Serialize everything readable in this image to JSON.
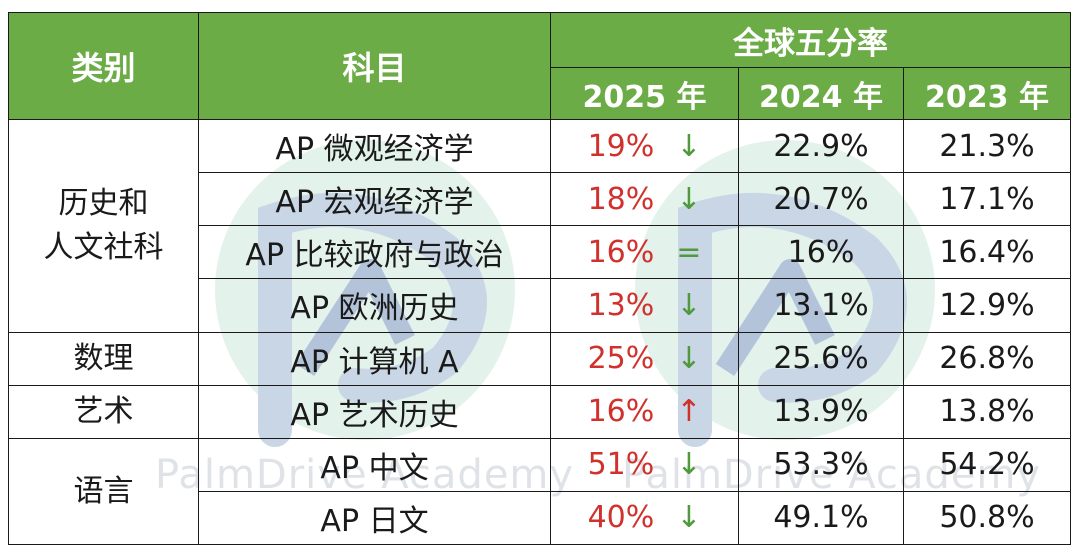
{
  "header": {
    "category": "类别",
    "subject": "科目",
    "group": "全球五分率",
    "years": [
      "2025 年",
      "2024 年",
      "2023 年"
    ]
  },
  "categories": [
    {
      "label_lines": [
        "历史和",
        "人文社科"
      ]
    },
    {
      "label_lines": [
        "数理"
      ]
    },
    {
      "label_lines": [
        "艺术"
      ]
    },
    {
      "label_lines": [
        "语言"
      ]
    }
  ],
  "rows": [
    {
      "subject": "AP 微观经济学",
      "y2025": "19%",
      "trend": "↓",
      "y2024": "22.9%",
      "y2023": "21.3%"
    },
    {
      "subject": "AP 宏观经济学",
      "y2025": "18%",
      "trend": "↓",
      "y2024": "20.7%",
      "y2023": "17.1%"
    },
    {
      "subject": "AP 比较政府与政治",
      "y2025": "16%",
      "trend": "=",
      "y2024": "16%",
      "y2023": "16.4%"
    },
    {
      "subject": "AP 欧洲历史",
      "y2025": "13%",
      "trend": "↓",
      "y2024": "13.1%",
      "y2023": "12.9%"
    },
    {
      "subject": "AP 计算机 A",
      "y2025": "25%",
      "trend": "↓",
      "y2024": "25.6%",
      "y2023": "26.8%"
    },
    {
      "subject": "AP 艺术历史",
      "y2025": "16%",
      "trend": "↑",
      "y2024": "13.9%",
      "y2023": "13.8%"
    },
    {
      "subject": "AP 中文",
      "y2025": "51%",
      "trend": "↓",
      "y2024": "53.3%",
      "y2023": "54.2%"
    },
    {
      "subject": "AP 日文",
      "y2025": "40%",
      "trend": "↓",
      "y2024": "49.1%",
      "y2023": "50.8%"
    }
  ],
  "watermark": {
    "text": "PalmDrive Academy"
  },
  "colors": {
    "header_bg": "#6cac46",
    "header_text": "#ffffff",
    "value_2025": "#d0312d",
    "arrow_down": "#4f9a3c",
    "arrow_up": "#d0312d",
    "border": "#1a1a1a"
  }
}
